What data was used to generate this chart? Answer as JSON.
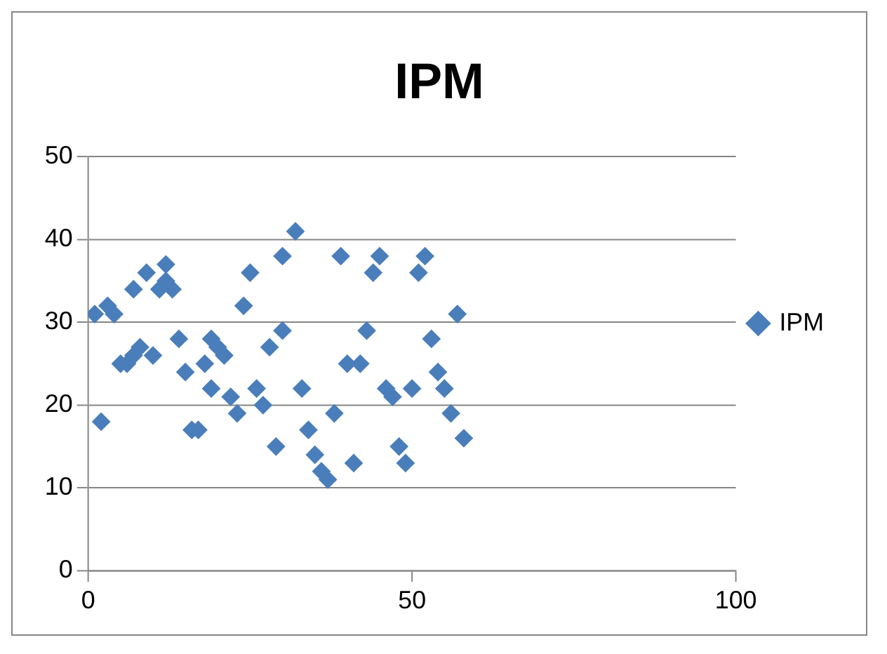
{
  "chart_data": {
    "type": "scatter",
    "title": "IPM",
    "x": [
      1,
      2,
      3,
      4,
      5,
      6,
      7,
      7,
      8,
      9,
      10,
      11,
      12,
      12,
      13,
      14,
      15,
      16,
      17,
      18,
      19,
      19,
      20,
      21,
      22,
      23,
      24,
      25,
      26,
      27,
      28,
      29,
      30,
      30,
      32,
      33,
      34,
      35,
      36,
      37,
      38,
      39,
      40,
      41,
      42,
      43,
      44,
      45,
      46,
      47,
      48,
      49,
      50,
      51,
      52,
      53,
      54,
      55,
      56,
      57,
      58
    ],
    "series": [
      {
        "name": "IPM",
        "color": "#4a7ebb",
        "values": [
          31,
          18,
          32,
          31,
          25,
          25,
          34,
          26,
          27,
          36,
          26,
          34,
          37,
          35,
          34,
          28,
          24,
          17,
          17,
          25,
          28,
          22,
          27,
          26,
          21,
          19,
          32,
          36,
          22,
          20,
          27,
          15,
          29,
          38,
          41,
          22,
          17,
          14,
          12,
          11,
          19,
          38,
          25,
          13,
          25,
          29,
          36,
          38,
          22,
          21,
          15,
          13,
          22,
          36,
          38,
          28,
          24,
          22,
          19,
          31,
          16
        ]
      }
    ],
    "xlim": [
      0,
      100
    ],
    "xticks": [
      0,
      50,
      100
    ],
    "ylim": [
      0,
      50
    ],
    "yticks": [
      0,
      10,
      20,
      30,
      40,
      50
    ],
    "grid": "y",
    "legend": "right",
    "marker": "diamond"
  }
}
